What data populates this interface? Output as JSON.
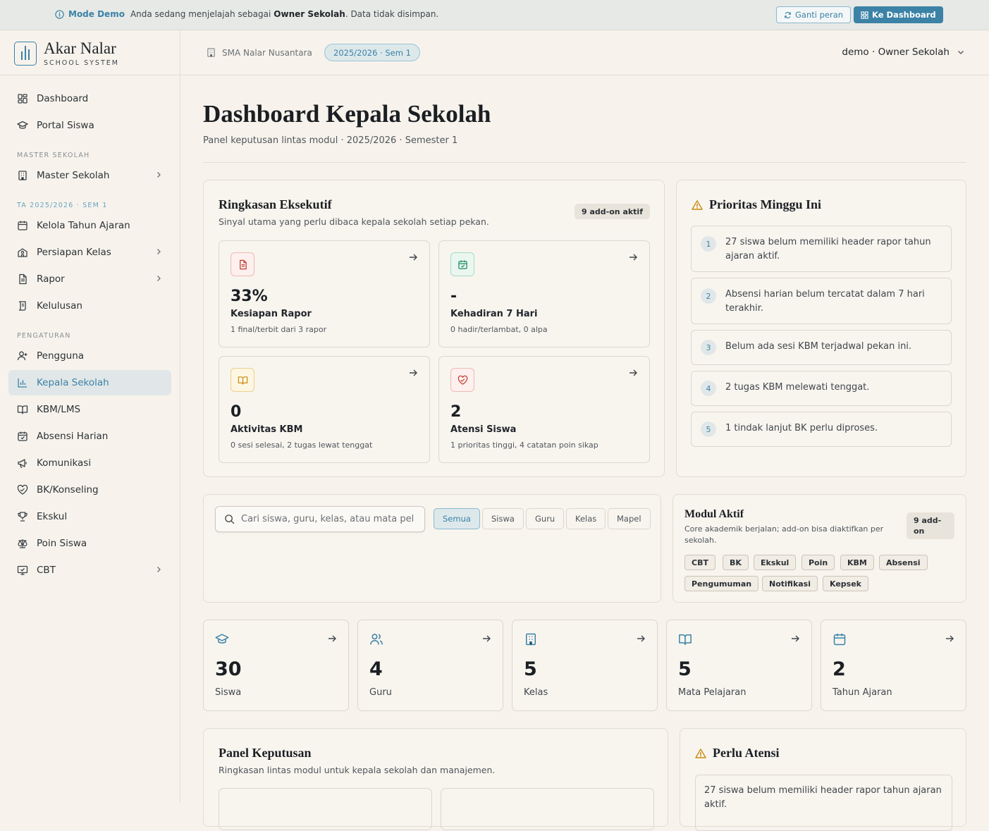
{
  "banner": {
    "mode_label": "Mode Demo",
    "text_prefix": "Anda sedang menjelajah sebagai",
    "role": "Owner Sekolah",
    "text_suffix": ". Data tidak disimpan.",
    "switch_role": "Ganti peran",
    "to_dashboard": "Ke Dashboard"
  },
  "brand": {
    "name": "Akar Nalar",
    "sub": "SCHOOL SYSTEM"
  },
  "sidebar": {
    "items": [
      {
        "label": "Dashboard",
        "icon": "dashboard-icon"
      },
      {
        "label": "Portal Siswa",
        "icon": "graduation-cap-icon"
      }
    ],
    "section_master": "MASTER SEKOLAH",
    "master_items": [
      {
        "label": "Master Sekolah",
        "icon": "building-icon"
      }
    ],
    "section_ta": "TA 2025/2026 · SEM 1",
    "ta_items": [
      {
        "label": "Kelola Tahun Ajaran",
        "icon": "calendar-icon"
      },
      {
        "label": "Persiapan Kelas",
        "icon": "school-icon"
      },
      {
        "label": "Rapor",
        "icon": "document-icon"
      },
      {
        "label": "Kelulusan",
        "icon": "scroll-icon"
      }
    ],
    "section_settings": "PENGATURAN",
    "settings_items": [
      {
        "label": "Pengguna",
        "icon": "user-plus-icon"
      },
      {
        "label": "Kepala Sekolah",
        "icon": "bar-chart-icon"
      },
      {
        "label": "KBM/LMS",
        "icon": "book-icon"
      },
      {
        "label": "Absensi Harian",
        "icon": "calendar-check-icon"
      },
      {
        "label": "Komunikasi",
        "icon": "megaphone-icon"
      },
      {
        "label": "BK/Konseling",
        "icon": "heart-handshake-icon"
      },
      {
        "label": "Ekskul",
        "icon": "trophy-icon"
      },
      {
        "label": "Poin Siswa",
        "icon": "scale-icon"
      },
      {
        "label": "CBT",
        "icon": "monitor-check-icon"
      }
    ]
  },
  "topbar": {
    "school": "SMA Nalar Nusantara",
    "semester": "2025/2026 · Sem 1",
    "user": "demo · Owner Sekolah"
  },
  "page": {
    "title": "Dashboard Kepala Sekolah",
    "subtitle": "Panel keputusan lintas modul · 2025/2026 · Semester 1"
  },
  "executive": {
    "title": "Ringkasan Eksekutif",
    "subtitle": "Sinyal utama yang perlu dibaca kepala sekolah setiap pekan.",
    "badge": "9 add-on aktif",
    "metrics": [
      {
        "value": "33%",
        "label": "Kesiapan Rapor",
        "desc": "1 final/terbit dari 3 rapor",
        "icon": "document-icon",
        "color": "#c0392b"
      },
      {
        "value": "-",
        "label": "Kehadiran 7 Hari",
        "desc": "0 hadir/terlambat, 0 alpa",
        "icon": "calendar-check-icon",
        "color": "#1f8a5b"
      },
      {
        "value": "0",
        "label": "Aktivitas KBM",
        "desc": "0 sesi selesai, 2 tugas lewat tenggat",
        "icon": "book-open-icon",
        "color": "#c98a12"
      },
      {
        "value": "2",
        "label": "Atensi Siswa",
        "desc": "1 prioritas tinggi, 4 catatan poin sikap",
        "icon": "heart-handshake-icon",
        "color": "#c0392b"
      }
    ]
  },
  "priorities": {
    "title": "Prioritas Minggu Ini",
    "items": [
      {
        "num": "1",
        "text": "27 siswa belum memiliki header rapor tahun ajaran aktif."
      },
      {
        "num": "2",
        "text": "Absensi harian belum tercatat dalam 7 hari terakhir."
      },
      {
        "num": "3",
        "text": "Belum ada sesi KBM terjadwal pekan ini."
      },
      {
        "num": "4",
        "text": "2 tugas KBM melewati tenggat."
      },
      {
        "num": "5",
        "text": "1 tindak lanjut BK perlu diproses."
      }
    ]
  },
  "search": {
    "placeholder": "Cari siswa, guru, kelas, atau mata pelajaran",
    "filters": [
      "Semua",
      "Siswa",
      "Guru",
      "Kelas",
      "Mapel"
    ]
  },
  "modules": {
    "title": "Modul Aktif",
    "subtitle": "Core akademik berjalan; add-on bisa diaktifkan per sekolah.",
    "badge_line1": "9 add-",
    "badge_line2": "on",
    "chips": [
      "CBT",
      "BK",
      "Ekskul",
      "Poin",
      "KBM",
      "Absensi",
      "Pengumuman",
      "Notifikasi",
      "Kepsek"
    ]
  },
  "stats": [
    {
      "value": "30",
      "label": "Siswa",
      "icon": "graduation-cap-icon"
    },
    {
      "value": "4",
      "label": "Guru",
      "icon": "users-icon"
    },
    {
      "value": "5",
      "label": "Kelas",
      "icon": "building-icon"
    },
    {
      "value": "5",
      "label": "Mata Pelajaran",
      "icon": "book-open-icon"
    },
    {
      "value": "2",
      "label": "Tahun Ajaran",
      "icon": "calendar-icon"
    }
  ],
  "decision": {
    "title": "Panel Keputusan",
    "subtitle": "Ringkasan lintas modul untuk kepala sekolah dan manajemen."
  },
  "attention": {
    "title": "Perlu Atensi",
    "first": "27 siswa belum memiliki header rapor tahun ajaran aktif."
  },
  "colors": {
    "accent": "#3b82a6",
    "warning": "#c98a12",
    "background": "#f7f3ec"
  }
}
